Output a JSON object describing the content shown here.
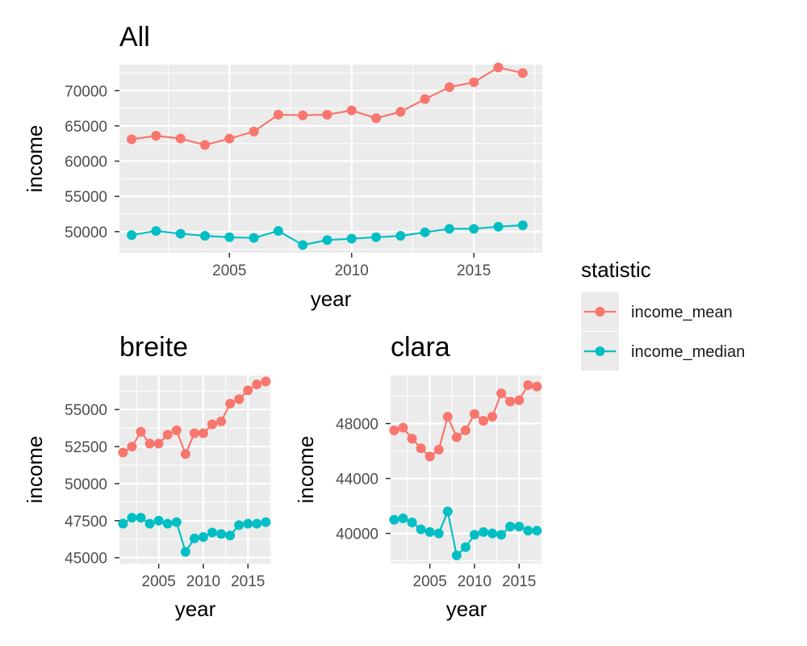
{
  "chart_data": [
    {
      "type": "line",
      "title": "All",
      "xlabel": "year",
      "ylabel": "income",
      "x": [
        2001,
        2002,
        2003,
        2004,
        2005,
        2006,
        2007,
        2008,
        2009,
        2010,
        2011,
        2012,
        2013,
        2014,
        2015,
        2016,
        2017
      ],
      "xlim": [
        2000.5,
        2017.8
      ],
      "ylim": [
        47000,
        73700
      ],
      "xticks": [
        2005,
        2010,
        2015
      ],
      "xtick_labels": [
        "2005",
        "2010",
        "2015"
      ],
      "yticks": [
        50000,
        55000,
        60000,
        65000,
        70000
      ],
      "ytick_labels": [
        "50000",
        "55000",
        "60000",
        "65000",
        "70000"
      ],
      "grid": true,
      "series": [
        {
          "name": "income_mean",
          "color": "#f8766d",
          "values": [
            63100,
            63600,
            63200,
            62300,
            63200,
            64200,
            66600,
            66500,
            66600,
            67200,
            66100,
            67000,
            68800,
            70500,
            71200,
            73300,
            72500
          ]
        },
        {
          "name": "income_median",
          "color": "#00bfc4",
          "values": [
            49500,
            50100,
            49700,
            49400,
            49200,
            49100,
            50100,
            48100,
            48800,
            49000,
            49200,
            49400,
            49900,
            50400,
            50400,
            50700,
            50900
          ]
        }
      ]
    },
    {
      "type": "line",
      "title": "breite",
      "xlabel": "year",
      "ylabel": "income",
      "x": [
        2001,
        2002,
        2003,
        2004,
        2005,
        2006,
        2007,
        2008,
        2009,
        2010,
        2011,
        2012,
        2013,
        2014,
        2015,
        2016,
        2017
      ],
      "xlim": [
        2000.6,
        2017.6
      ],
      "ylim": [
        44600,
        57300
      ],
      "xticks": [
        2005,
        2010,
        2015
      ],
      "xtick_labels": [
        "2005",
        "2010",
        "2015"
      ],
      "yticks": [
        45000,
        47500,
        50000,
        52500,
        55000
      ],
      "ytick_labels": [
        "45000",
        "47500",
        "50000",
        "52500",
        "55000"
      ],
      "grid": true,
      "series": [
        {
          "name": "income_mean",
          "color": "#f8766d",
          "values": [
            52100,
            52500,
            53500,
            52700,
            52700,
            53300,
            53600,
            52000,
            53400,
            53400,
            54000,
            54200,
            55400,
            55700,
            56300,
            56700,
            56900
          ]
        },
        {
          "name": "income_median",
          "color": "#00bfc4",
          "values": [
            47300,
            47700,
            47700,
            47300,
            47500,
            47300,
            47400,
            45400,
            46300,
            46400,
            46700,
            46600,
            46500,
            47200,
            47300,
            47300,
            47400
          ]
        }
      ]
    },
    {
      "type": "line",
      "title": "clara",
      "xlabel": "year",
      "ylabel": "income",
      "x": [
        2001,
        2002,
        2003,
        2004,
        2005,
        2006,
        2007,
        2008,
        2009,
        2010,
        2011,
        2012,
        2013,
        2014,
        2015,
        2016,
        2017
      ],
      "xlim": [
        2000.6,
        2017.6
      ],
      "ylim": [
        37800,
        51500
      ],
      "xticks": [
        2005,
        2010,
        2015
      ],
      "xtick_labels": [
        "2005",
        "2010",
        "2015"
      ],
      "yticks": [
        40000,
        44000,
        48000
      ],
      "ytick_labels": [
        "40000",
        "44000",
        "48000"
      ],
      "grid": true,
      "series": [
        {
          "name": "income_mean",
          "color": "#f8766d",
          "values": [
            47500,
            47700,
            46900,
            46200,
            45600,
            46100,
            48500,
            47000,
            47500,
            48700,
            48200,
            48500,
            50200,
            49600,
            49700,
            50800,
            50700
          ]
        },
        {
          "name": "income_median",
          "color": "#00bfc4",
          "values": [
            41000,
            41100,
            40800,
            40300,
            40100,
            40000,
            41600,
            38400,
            39000,
            39900,
            40100,
            40000,
            39900,
            40500,
            40500,
            40200,
            40200
          ]
        }
      ]
    }
  ],
  "legend": {
    "title": "statistic",
    "placement": "right",
    "items": [
      {
        "label": "income_mean",
        "color": "#f8766d"
      },
      {
        "label": "income_median",
        "color": "#00bfc4"
      }
    ]
  },
  "colors": {
    "panel_background": "#ebebeb",
    "grid": "#ffffff",
    "tick_text": "#4d4d4d"
  }
}
